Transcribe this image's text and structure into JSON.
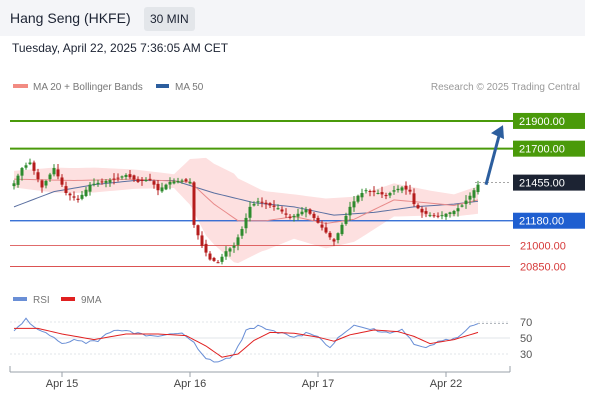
{
  "header": {
    "instrument": "Hang Seng (HKFE)",
    "timeframe": "30 MIN",
    "datetime": "Tuesday, April 22, 2025 7:36:05 AM CET"
  },
  "legend": {
    "items": [
      {
        "label": "MA 20 + Bollinger Bands",
        "color": "#f28b82"
      },
      {
        "label": "MA 50",
        "color": "#2c5e9e"
      }
    ],
    "credit": "Research © 2025 Trading Central"
  },
  "colors": {
    "up": "#2e8b2e",
    "down": "#b51c1c",
    "band": "#fde0e0",
    "ma20": "#e88a8a",
    "ma50": "#5a6fa0",
    "resistance": "#4a9a0a",
    "pivot": "#1f5fd0",
    "support": "#d63a3a",
    "price": "#1c2333",
    "arrow": "#2c5e9e",
    "rsi": "#6a8fd6",
    "rsi_ma": "#e02020"
  },
  "chart_data": [
    {
      "type": "candlestick",
      "title": "Hang Seng (HKFE) 30 MIN",
      "x_tick_labels": [
        "Apr 15",
        "Apr 16",
        "Apr 17",
        "Apr 22"
      ],
      "ylim": [
        20680,
        22080
      ],
      "levels": [
        {
          "value": 21900,
          "label": "21900.00",
          "kind": "resistance"
        },
        {
          "value": 21700,
          "label": "21700.00",
          "kind": "resistance"
        },
        {
          "value": 21455,
          "label": "21455.00",
          "kind": "price"
        },
        {
          "value": 21180,
          "label": "21180.00",
          "kind": "pivot"
        },
        {
          "value": 21000,
          "label": "21000.00",
          "kind": "support"
        },
        {
          "value": 20850,
          "label": "20850.00",
          "kind": "support"
        }
      ],
      "forecast_arrow": {
        "from": 21440,
        "to": 21870
      },
      "keypoints_close": [
        [
          0,
          21450
        ],
        [
          2,
          21560
        ],
        [
          4,
          21600
        ],
        [
          7,
          21420
        ],
        [
          10,
          21560
        ],
        [
          13,
          21380
        ],
        [
          16,
          21330
        ],
        [
          19,
          21440
        ],
        [
          22,
          21460
        ],
        [
          25,
          21480
        ],
        [
          28,
          21510
        ],
        [
          31,
          21460
        ],
        [
          34,
          21480
        ],
        [
          36,
          21400
        ],
        [
          39,
          21460
        ],
        [
          42,
          21470
        ],
        [
          44,
          21460
        ],
        [
          45,
          21150
        ],
        [
          47,
          21000
        ],
        [
          49,
          20900
        ],
        [
          51,
          20880
        ],
        [
          53,
          20960
        ],
        [
          55,
          21000
        ],
        [
          57,
          21120
        ],
        [
          59,
          21280
        ],
        [
          61,
          21320
        ],
        [
          63,
          21300
        ],
        [
          66,
          21270
        ],
        [
          69,
          21200
        ],
        [
          71,
          21230
        ],
        [
          73,
          21260
        ],
        [
          75,
          21200
        ],
        [
          77,
          21130
        ],
        [
          79,
          21060
        ],
        [
          80,
          21030
        ],
        [
          82,
          21150
        ],
        [
          84,
          21280
        ],
        [
          86,
          21360
        ],
        [
          88,
          21400
        ],
        [
          91,
          21380
        ],
        [
          93,
          21360
        ],
        [
          95,
          21400
        ],
        [
          97,
          21420
        ],
        [
          99,
          21390
        ],
        [
          100,
          21300
        ],
        [
          102,
          21240
        ],
        [
          104,
          21220
        ],
        [
          106,
          21210
        ],
        [
          108,
          21230
        ],
        [
          110,
          21250
        ],
        [
          112,
          21290
        ],
        [
          114,
          21360
        ],
        [
          116,
          21440
        ]
      ],
      "keypoints_ma20": [
        [
          0,
          21480
        ],
        [
          15,
          21470
        ],
        [
          30,
          21480
        ],
        [
          44,
          21460
        ],
        [
          50,
          21300
        ],
        [
          56,
          21180
        ],
        [
          63,
          21180
        ],
        [
          70,
          21210
        ],
        [
          78,
          21160
        ],
        [
          85,
          21190
        ],
        [
          95,
          21330
        ],
        [
          103,
          21310
        ],
        [
          110,
          21290
        ],
        [
          116,
          21330
        ]
      ],
      "keypoints_ma50": [
        [
          0,
          21280
        ],
        [
          10,
          21390
        ],
        [
          20,
          21440
        ],
        [
          30,
          21470
        ],
        [
          40,
          21470
        ],
        [
          50,
          21380
        ],
        [
          60,
          21310
        ],
        [
          70,
          21280
        ],
        [
          80,
          21220
        ],
        [
          90,
          21240
        ],
        [
          100,
          21280
        ],
        [
          110,
          21300
        ],
        [
          116,
          21320
        ]
      ],
      "keypoints_band_width": [
        [
          0,
          60
        ],
        [
          10,
          90
        ],
        [
          20,
          90
        ],
        [
          30,
          70
        ],
        [
          40,
          50
        ],
        [
          48,
          280
        ],
        [
          55,
          320
        ],
        [
          62,
          220
        ],
        [
          70,
          160
        ],
        [
          78,
          180
        ],
        [
          86,
          160
        ],
        [
          95,
          120
        ],
        [
          104,
          90
        ],
        [
          110,
          80
        ],
        [
          116,
          100
        ]
      ]
    },
    {
      "type": "line",
      "series": [
        {
          "name": "RSI"
        },
        {
          "name": "9MA"
        }
      ],
      "ylim": [
        10,
        85
      ],
      "y_ticks": [
        70,
        50,
        30
      ],
      "keypoints_rsi": [
        [
          0,
          60
        ],
        [
          3,
          72
        ],
        [
          6,
          60
        ],
        [
          9,
          55
        ],
        [
          12,
          42
        ],
        [
          15,
          47
        ],
        [
          18,
          46
        ],
        [
          21,
          47
        ],
        [
          24,
          59
        ],
        [
          27,
          60
        ],
        [
          30,
          58
        ],
        [
          33,
          54
        ],
        [
          36,
          52
        ],
        [
          39,
          55
        ],
        [
          42,
          56
        ],
        [
          44,
          48
        ],
        [
          47,
          30
        ],
        [
          50,
          20
        ],
        [
          52,
          22
        ],
        [
          55,
          30
        ],
        [
          58,
          60
        ],
        [
          61,
          66
        ],
        [
          64,
          60
        ],
        [
          67,
          57
        ],
        [
          70,
          51
        ],
        [
          73,
          57
        ],
        [
          76,
          52
        ],
        [
          79,
          38
        ],
        [
          82,
          54
        ],
        [
          85,
          66
        ],
        [
          88,
          62
        ],
        [
          91,
          58
        ],
        [
          94,
          56
        ],
        [
          97,
          61
        ],
        [
          100,
          42
        ],
        [
          103,
          38
        ],
        [
          106,
          46
        ],
        [
          109,
          47
        ],
        [
          112,
          55
        ],
        [
          114,
          64
        ],
        [
          116,
          68
        ]
      ],
      "keypoints_rsi_ma": [
        [
          0,
          62
        ],
        [
          6,
          62
        ],
        [
          12,
          55
        ],
        [
          20,
          48
        ],
        [
          28,
          55
        ],
        [
          36,
          55
        ],
        [
          43,
          53
        ],
        [
          48,
          40
        ],
        [
          52,
          26
        ],
        [
          56,
          30
        ],
        [
          60,
          47
        ],
        [
          64,
          57
        ],
        [
          70,
          56
        ],
        [
          76,
          51
        ],
        [
          80,
          46
        ],
        [
          84,
          54
        ],
        [
          90,
          60
        ],
        [
          96,
          58
        ],
        [
          100,
          52
        ],
        [
          104,
          43
        ],
        [
          110,
          48
        ],
        [
          116,
          57
        ]
      ]
    }
  ]
}
